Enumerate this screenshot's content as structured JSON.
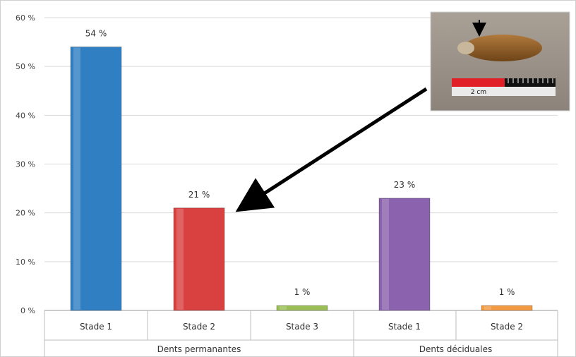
{
  "chart_data": {
    "type": "bar",
    "ylim": [
      0,
      60
    ],
    "y_ticks": [
      0,
      10,
      20,
      30,
      40,
      50,
      60
    ],
    "y_tick_labels": [
      "0 %",
      "10 %",
      "20 %",
      "30 %",
      "40 %",
      "50 %",
      "60 %"
    ],
    "grid": true,
    "legend": "none",
    "bars": [
      {
        "category": "Stade 1",
        "group": "Dents permanantes",
        "value": 54,
        "label": "54 %",
        "color": "#2f7fc2"
      },
      {
        "category": "Stade 2",
        "group": "Dents permanantes",
        "value": 21,
        "label": "21 %",
        "color": "#d94040"
      },
      {
        "category": "Stade 3",
        "group": "Dents permanantes",
        "value": 1,
        "label": "1 %",
        "color": "#9bbf56"
      },
      {
        "category": "Stade 1",
        "group": "Dents déciduales",
        "value": 23,
        "label": "23 %",
        "color": "#8a62ad"
      },
      {
        "category": "Stade 2",
        "group": "Dents déciduales",
        "value": 1,
        "label": "1 %",
        "color": "#f39a43"
      }
    ],
    "groups": [
      {
        "name": "Dents permanantes"
      },
      {
        "name": "Dents déciduales"
      }
    ],
    "annotation": {
      "photo_scale_label": "2 cm",
      "arrow_target": "Stade 2 · Dents permanantes"
    }
  }
}
